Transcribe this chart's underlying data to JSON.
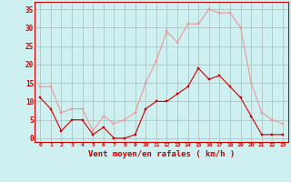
{
  "x": [
    0,
    1,
    2,
    3,
    4,
    5,
    6,
    7,
    8,
    9,
    10,
    11,
    12,
    13,
    14,
    15,
    16,
    17,
    18,
    19,
    20,
    21,
    22,
    23
  ],
  "vent_moyen": [
    11,
    8,
    2,
    5,
    5,
    1,
    3,
    0,
    0,
    1,
    8,
    10,
    10,
    12,
    14,
    19,
    16,
    17,
    14,
    11,
    6,
    1,
    1,
    1
  ],
  "rafales": [
    14,
    14,
    7,
    8,
    8,
    2,
    6,
    4,
    5,
    7,
    15,
    21,
    29,
    26,
    31,
    31,
    35,
    34,
    34,
    30,
    15,
    7,
    5,
    4
  ],
  "bg_color": "#cef0f0",
  "grid_color": "#aabbbb",
  "line_moyen_color": "#cc0000",
  "line_rafales_color": "#ee9999",
  "xlabel": "Vent moyen/en rafales ( km/h )",
  "ylim": [
    -1,
    37
  ],
  "yticks": [
    0,
    5,
    10,
    15,
    20,
    25,
    30,
    35
  ],
  "xticks": [
    0,
    1,
    2,
    3,
    4,
    5,
    6,
    7,
    8,
    9,
    10,
    11,
    12,
    13,
    14,
    15,
    16,
    17,
    18,
    19,
    20,
    21,
    22,
    23
  ],
  "tick_color": "#cc0000",
  "label_color": "#cc0000",
  "spine_color": "#cc0000"
}
